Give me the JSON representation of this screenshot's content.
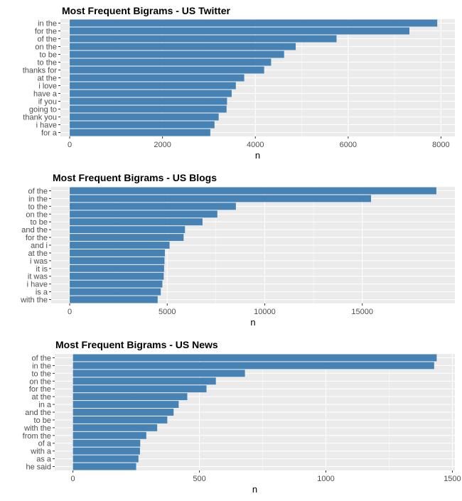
{
  "chart_data": [
    {
      "type": "bar",
      "orientation": "horizontal",
      "title": "Most Frequent Bigrams - US Twitter",
      "xlabel": "n",
      "ylabel": "",
      "categories": [
        "in the",
        "for the",
        "of the",
        "on the",
        "to be",
        "to the",
        "thanks for",
        "at the",
        "i love",
        "have a",
        "if you",
        "going to",
        "thank you",
        "i have",
        "for a"
      ],
      "values": [
        7920,
        7320,
        5750,
        4870,
        4620,
        4340,
        4190,
        3760,
        3580,
        3490,
        3390,
        3380,
        3210,
        3120,
        3030
      ],
      "xlim": [
        -200,
        8300
      ],
      "xticks": [
        0,
        2000,
        4000,
        6000,
        8000
      ],
      "xticklabels": [
        "0",
        "2000",
        "4000",
        "6000",
        "8000"
      ],
      "grid": true,
      "bar_color": "#4682b4",
      "panel_bg": "#ebebeb"
    },
    {
      "type": "bar",
      "orientation": "horizontal",
      "title": "Most Frequent Bigrams - US Blogs",
      "xlabel": "n",
      "ylabel": "",
      "categories": [
        "of the",
        "in the",
        "to the",
        "on the",
        "to be",
        "and the",
        "for the",
        "and i",
        "at the",
        "i was",
        "it is",
        "it was",
        "i have",
        "is a",
        "with the"
      ],
      "values": [
        18800,
        15450,
        8520,
        7570,
        6810,
        5910,
        5840,
        5120,
        4880,
        4860,
        4840,
        4820,
        4750,
        4670,
        4510
      ],
      "xlim": [
        -950,
        19750
      ],
      "xticks": [
        0,
        5000,
        10000,
        15000
      ],
      "xticklabels": [
        "0",
        "5000",
        "10000",
        "15000"
      ],
      "grid": true,
      "bar_color": "#4682b4",
      "panel_bg": "#ebebeb"
    },
    {
      "type": "bar",
      "orientation": "horizontal",
      "title": "Most Frequent Bigrams - US News",
      "xlabel": "n",
      "ylabel": "",
      "categories": [
        "of the",
        "in the",
        "to the",
        "on the",
        "for the",
        "at the",
        "in a",
        "and the",
        "to be",
        "with the",
        "from the",
        "of a",
        "with a",
        "as a",
        "he said"
      ],
      "values": [
        1438,
        1428,
        680,
        565,
        528,
        452,
        418,
        398,
        373,
        333,
        290,
        266,
        265,
        259,
        250
      ],
      "xlim": [
        -72,
        1510
      ],
      "xticks": [
        0,
        500,
        1000,
        1500
      ],
      "xticklabels": [
        "0",
        "500",
        "1000",
        "1500"
      ],
      "grid": true,
      "bar_color": "#4682b4",
      "panel_bg": "#ebebeb"
    }
  ]
}
